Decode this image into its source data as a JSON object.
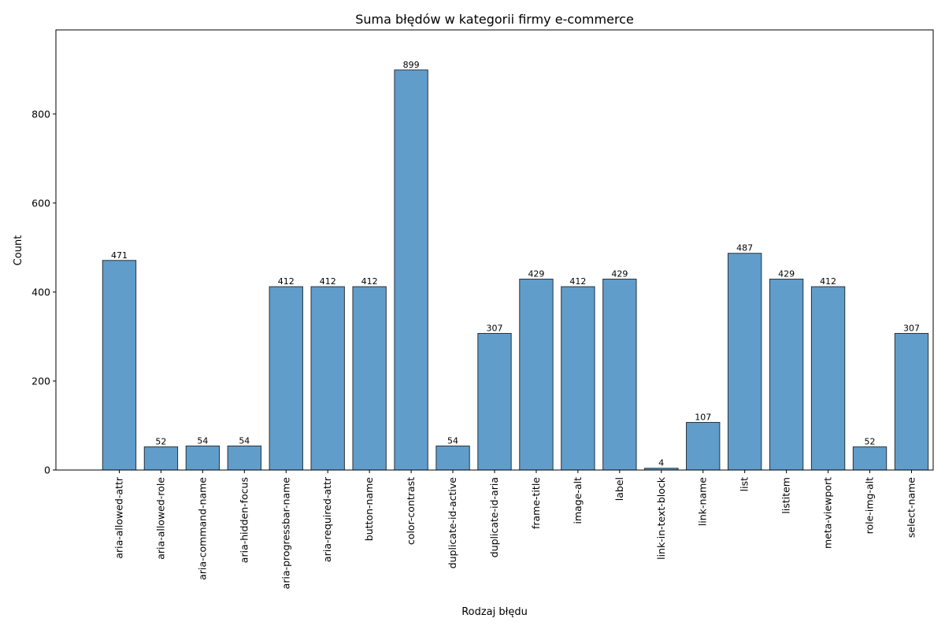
{
  "chart_data": {
    "type": "bar",
    "title": "Suma błędów w kategorii firmy e-commerce",
    "xlabel": "Rodzaj błędu",
    "ylabel": "Count",
    "ylim": [
      0,
      989
    ],
    "yticks": [
      0,
      200,
      400,
      600,
      800
    ],
    "categories": [
      "aria-allowed-attr",
      "aria-allowed-role",
      "aria-command-name",
      "aria-hidden-focus",
      "aria-progressbar-name",
      "aria-required-attr",
      "button-name",
      "color-contrast",
      "duplicate-id-active",
      "duplicate-id-aria",
      "frame-title",
      "image-alt",
      "label",
      "link-in-text-block",
      "link-name",
      "list",
      "listitem",
      "meta-viewport",
      "role-img-alt",
      "select-name"
    ],
    "values": [
      471,
      52,
      54,
      54,
      412,
      412,
      412,
      899,
      54,
      307,
      429,
      412,
      429,
      4,
      107,
      487,
      429,
      412,
      52,
      307
    ],
    "bar_color": "#4b8fc4",
    "bar_edge_color": "#26323d",
    "grid": false,
    "legend": "none"
  }
}
